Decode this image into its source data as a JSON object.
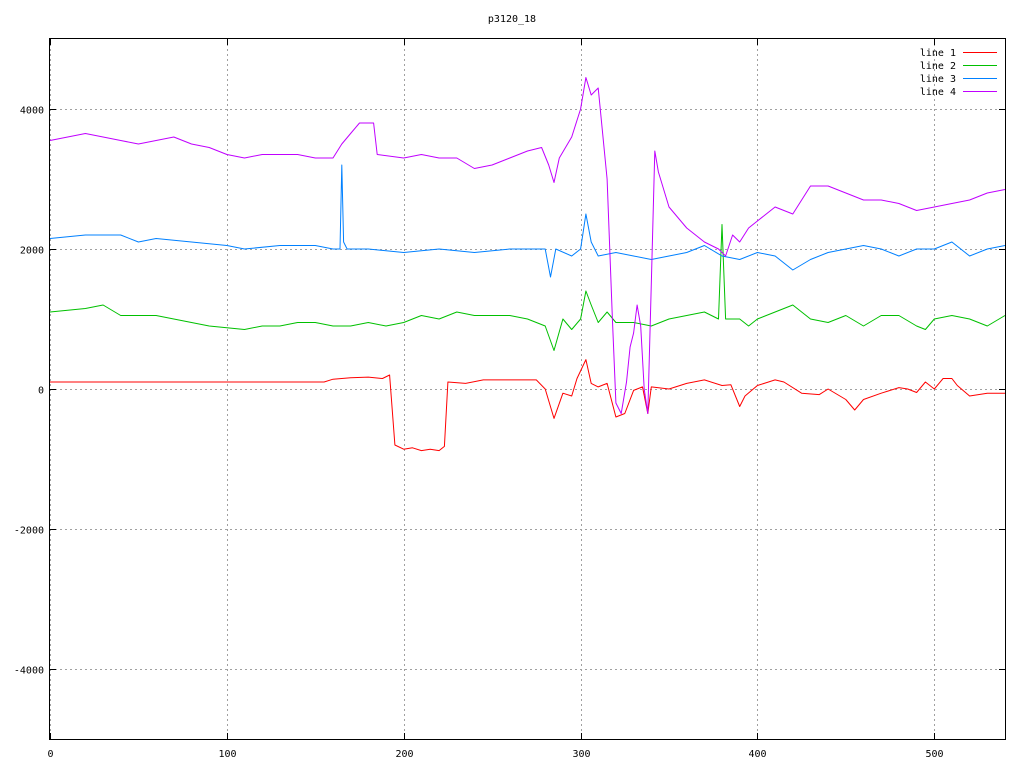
{
  "chart_data": {
    "type": "line",
    "title": "p3120_18",
    "xlabel": "",
    "ylabel": "",
    "xlim": [
      0,
      540
    ],
    "ylim": [
      -5000,
      5000
    ],
    "x_ticks": [
      0,
      100,
      200,
      300,
      400,
      500
    ],
    "y_ticks": [
      -4000,
      -2000,
      0,
      2000,
      4000
    ],
    "x_tick_labels": [
      "0",
      "100",
      "200",
      "300",
      "400",
      "500"
    ],
    "y_tick_labels": [
      "-4000",
      "-2000",
      "0",
      "2000",
      "4000"
    ],
    "grid": true,
    "legend_position": "top-right",
    "series": [
      {
        "name": "line 1",
        "color": "#ff0000",
        "points": [
          [
            0,
            100
          ],
          [
            150,
            100
          ],
          [
            155,
            100
          ],
          [
            160,
            140
          ],
          [
            170,
            160
          ],
          [
            180,
            170
          ],
          [
            188,
            150
          ],
          [
            192,
            200
          ],
          [
            195,
            -800
          ],
          [
            200,
            -860
          ],
          [
            205,
            -840
          ],
          [
            210,
            -880
          ],
          [
            215,
            -860
          ],
          [
            220,
            -880
          ],
          [
            223,
            -820
          ],
          [
            225,
            100
          ],
          [
            235,
            80
          ],
          [
            245,
            130
          ],
          [
            260,
            130
          ],
          [
            270,
            130
          ],
          [
            275,
            130
          ],
          [
            280,
            0
          ],
          [
            285,
            -420
          ],
          [
            290,
            -60
          ],
          [
            295,
            -100
          ],
          [
            298,
            150
          ],
          [
            303,
            420
          ],
          [
            306,
            80
          ],
          [
            310,
            30
          ],
          [
            315,
            80
          ],
          [
            320,
            -400
          ],
          [
            325,
            -350
          ],
          [
            330,
            -20
          ],
          [
            335,
            30
          ],
          [
            338,
            -350
          ],
          [
            340,
            30
          ],
          [
            350,
            0
          ],
          [
            360,
            80
          ],
          [
            370,
            130
          ],
          [
            380,
            50
          ],
          [
            385,
            60
          ],
          [
            390,
            -250
          ],
          [
            393,
            -100
          ],
          [
            400,
            50
          ],
          [
            410,
            130
          ],
          [
            415,
            100
          ],
          [
            425,
            -60
          ],
          [
            435,
            -80
          ],
          [
            440,
            0
          ],
          [
            450,
            -150
          ],
          [
            455,
            -300
          ],
          [
            460,
            -150
          ],
          [
            470,
            -60
          ],
          [
            480,
            20
          ],
          [
            485,
            0
          ],
          [
            490,
            -50
          ],
          [
            495,
            100
          ],
          [
            500,
            0
          ],
          [
            505,
            150
          ],
          [
            510,
            150
          ],
          [
            513,
            50
          ],
          [
            520,
            -100
          ],
          [
            530,
            -60
          ],
          [
            540,
            -60
          ]
        ]
      },
      {
        "name": "line 2",
        "color": "#00c000",
        "points": [
          [
            0,
            1100
          ],
          [
            20,
            1150
          ],
          [
            30,
            1200
          ],
          [
            40,
            1050
          ],
          [
            60,
            1050
          ],
          [
            80,
            950
          ],
          [
            90,
            900
          ],
          [
            110,
            850
          ],
          [
            120,
            900
          ],
          [
            130,
            900
          ],
          [
            140,
            950
          ],
          [
            150,
            950
          ],
          [
            160,
            900
          ],
          [
            170,
            900
          ],
          [
            180,
            950
          ],
          [
            190,
            900
          ],
          [
            200,
            950
          ],
          [
            210,
            1050
          ],
          [
            220,
            1000
          ],
          [
            230,
            1100
          ],
          [
            240,
            1050
          ],
          [
            250,
            1050
          ],
          [
            260,
            1050
          ],
          [
            270,
            1000
          ],
          [
            280,
            900
          ],
          [
            285,
            550
          ],
          [
            290,
            1000
          ],
          [
            295,
            850
          ],
          [
            300,
            1000
          ],
          [
            303,
            1400
          ],
          [
            306,
            1200
          ],
          [
            310,
            950
          ],
          [
            315,
            1100
          ],
          [
            320,
            950
          ],
          [
            330,
            950
          ],
          [
            340,
            900
          ],
          [
            350,
            1000
          ],
          [
            360,
            1050
          ],
          [
            370,
            1100
          ],
          [
            378,
            1000
          ],
          [
            380,
            2350
          ],
          [
            382,
            1000
          ],
          [
            390,
            1000
          ],
          [
            395,
            900
          ],
          [
            400,
            1000
          ],
          [
            410,
            1100
          ],
          [
            420,
            1200
          ],
          [
            430,
            1000
          ],
          [
            440,
            950
          ],
          [
            450,
            1050
          ],
          [
            460,
            900
          ],
          [
            470,
            1050
          ],
          [
            480,
            1050
          ],
          [
            490,
            900
          ],
          [
            495,
            850
          ],
          [
            500,
            1000
          ],
          [
            510,
            1050
          ],
          [
            520,
            1000
          ],
          [
            530,
            900
          ],
          [
            540,
            1050
          ]
        ]
      },
      {
        "name": "line 3",
        "color": "#0080ff",
        "points": [
          [
            0,
            2150
          ],
          [
            20,
            2200
          ],
          [
            40,
            2200
          ],
          [
            50,
            2100
          ],
          [
            60,
            2150
          ],
          [
            80,
            2100
          ],
          [
            100,
            2050
          ],
          [
            110,
            2000
          ],
          [
            130,
            2050
          ],
          [
            150,
            2050
          ],
          [
            160,
            2000
          ],
          [
            164,
            2000
          ],
          [
            165,
            3200
          ],
          [
            166,
            2100
          ],
          [
            168,
            2000
          ],
          [
            180,
            2000
          ],
          [
            200,
            1950
          ],
          [
            220,
            2000
          ],
          [
            240,
            1950
          ],
          [
            260,
            2000
          ],
          [
            280,
            2000
          ],
          [
            283,
            1600
          ],
          [
            286,
            2000
          ],
          [
            295,
            1900
          ],
          [
            300,
            2000
          ],
          [
            303,
            2500
          ],
          [
            306,
            2100
          ],
          [
            310,
            1900
          ],
          [
            320,
            1950
          ],
          [
            330,
            1900
          ],
          [
            340,
            1850
          ],
          [
            350,
            1900
          ],
          [
            360,
            1950
          ],
          [
            370,
            2050
          ],
          [
            380,
            1900
          ],
          [
            390,
            1850
          ],
          [
            400,
            1950
          ],
          [
            410,
            1900
          ],
          [
            420,
            1700
          ],
          [
            430,
            1850
          ],
          [
            440,
            1950
          ],
          [
            450,
            2000
          ],
          [
            460,
            2050
          ],
          [
            470,
            2000
          ],
          [
            480,
            1900
          ],
          [
            490,
            2000
          ],
          [
            500,
            2000
          ],
          [
            510,
            2100
          ],
          [
            520,
            1900
          ],
          [
            530,
            2000
          ],
          [
            540,
            2050
          ]
        ]
      },
      {
        "name": "line 4",
        "color": "#c000ff",
        "points": [
          [
            0,
            3550
          ],
          [
            10,
            3600
          ],
          [
            20,
            3650
          ],
          [
            30,
            3600
          ],
          [
            40,
            3550
          ],
          [
            50,
            3500
          ],
          [
            60,
            3550
          ],
          [
            70,
            3600
          ],
          [
            80,
            3500
          ],
          [
            90,
            3450
          ],
          [
            100,
            3350
          ],
          [
            110,
            3300
          ],
          [
            120,
            3350
          ],
          [
            130,
            3350
          ],
          [
            140,
            3350
          ],
          [
            150,
            3300
          ],
          [
            160,
            3300
          ],
          [
            165,
            3500
          ],
          [
            170,
            3650
          ],
          [
            175,
            3800
          ],
          [
            183,
            3800
          ],
          [
            185,
            3350
          ],
          [
            200,
            3300
          ],
          [
            210,
            3350
          ],
          [
            220,
            3300
          ],
          [
            230,
            3300
          ],
          [
            240,
            3150
          ],
          [
            250,
            3200
          ],
          [
            260,
            3300
          ],
          [
            270,
            3400
          ],
          [
            278,
            3450
          ],
          [
            282,
            3200
          ],
          [
            285,
            2950
          ],
          [
            288,
            3300
          ],
          [
            295,
            3600
          ],
          [
            300,
            4000
          ],
          [
            303,
            4450
          ],
          [
            306,
            4200
          ],
          [
            310,
            4300
          ],
          [
            315,
            3000
          ],
          [
            318,
            1000
          ],
          [
            320,
            -200
          ],
          [
            323,
            -350
          ],
          [
            326,
            100
          ],
          [
            328,
            600
          ],
          [
            330,
            800
          ],
          [
            332,
            1200
          ],
          [
            334,
            900
          ],
          [
            336,
            0
          ],
          [
            338,
            -350
          ],
          [
            340,
            1500
          ],
          [
            342,
            3400
          ],
          [
            344,
            3100
          ],
          [
            350,
            2600
          ],
          [
            360,
            2300
          ],
          [
            370,
            2100
          ],
          [
            378,
            2000
          ],
          [
            382,
            1900
          ],
          [
            386,
            2200
          ],
          [
            390,
            2100
          ],
          [
            395,
            2300
          ],
          [
            400,
            2400
          ],
          [
            410,
            2600
          ],
          [
            420,
            2500
          ],
          [
            430,
            2900
          ],
          [
            440,
            2900
          ],
          [
            450,
            2800
          ],
          [
            460,
            2700
          ],
          [
            470,
            2700
          ],
          [
            480,
            2650
          ],
          [
            490,
            2550
          ],
          [
            500,
            2600
          ],
          [
            510,
            2650
          ],
          [
            520,
            2700
          ],
          [
            530,
            2800
          ],
          [
            540,
            2850
          ]
        ]
      }
    ]
  }
}
